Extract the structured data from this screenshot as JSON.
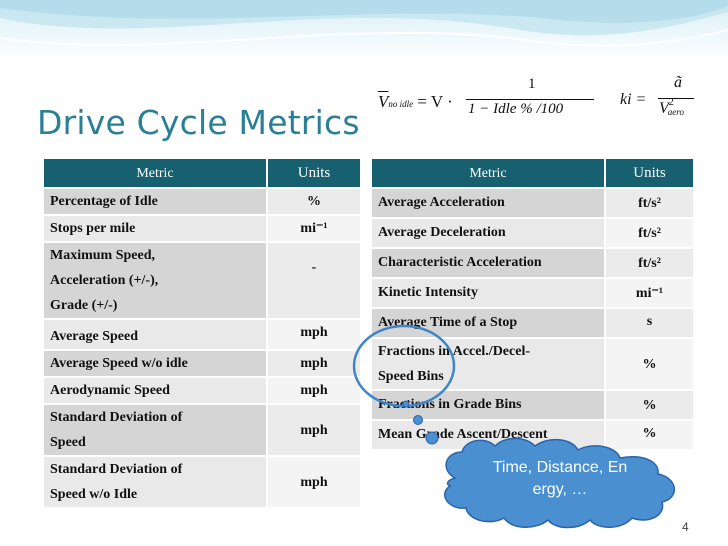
{
  "slide": {
    "title": "Drive Cycle Metrics",
    "page_number": "4",
    "accent_color": "#2a7f96",
    "header_color": "#17606f",
    "callout_color": "#3f86c9"
  },
  "formula_1": {
    "lhs": "V",
    "lhs_sub": "no idle",
    "eq": "= V ·",
    "numerator": "1",
    "denominator": "1 − Idle % /100"
  },
  "formula_2": {
    "lhs": "ki =",
    "numerator": "ã",
    "denominator": "V",
    "den_sup": "2",
    "den_sub": "aero"
  },
  "left_table": {
    "headers": {
      "metric": "Metric",
      "units": "Units"
    },
    "rows": [
      {
        "metric": "Percentage of Idle",
        "units": "%"
      },
      {
        "metric": "Stops per mile",
        "units": "mi⁻¹"
      },
      {
        "metric_lines": [
          "Maximum Speed,",
          "Acceleration (+/-),",
          "Grade (+/-)"
        ],
        "units": "-"
      },
      {
        "metric": "Average Speed",
        "units": "mph"
      },
      {
        "metric": "Average Speed w/o idle",
        "units": "mph"
      },
      {
        "metric": "Aerodynamic Speed",
        "units": "mph"
      },
      {
        "metric_lines": [
          "Standard Deviation of",
          "Speed"
        ],
        "units": "mph"
      },
      {
        "metric_lines": [
          "Standard Deviation of",
          "Speed w/o Idle"
        ],
        "units": "mph"
      }
    ]
  },
  "right_table": {
    "headers": {
      "metric": "Metric",
      "units": "Units"
    },
    "rows": [
      {
        "metric": "Average Acceleration",
        "units": "ft/s²"
      },
      {
        "metric": "Average Deceleration",
        "units": "ft/s²"
      },
      {
        "metric": "Characteristic Acceleration",
        "units": "ft/s²"
      },
      {
        "metric": "Kinetic Intensity",
        "units": "mi⁻¹"
      },
      {
        "metric": "Average Time of a Stop",
        "units": "s"
      },
      {
        "metric_lines": [
          "Fractions in Accel./Decel-",
          "Speed Bins"
        ],
        "units": "%"
      },
      {
        "metric": "Fractions in Grade Bins",
        "units": "%"
      },
      {
        "metric": "Mean Grade Ascent/Descent",
        "units": "%"
      }
    ]
  },
  "callout": {
    "text_line_1": "Time,  Distance, En",
    "text_line_2": "ergy, …"
  }
}
